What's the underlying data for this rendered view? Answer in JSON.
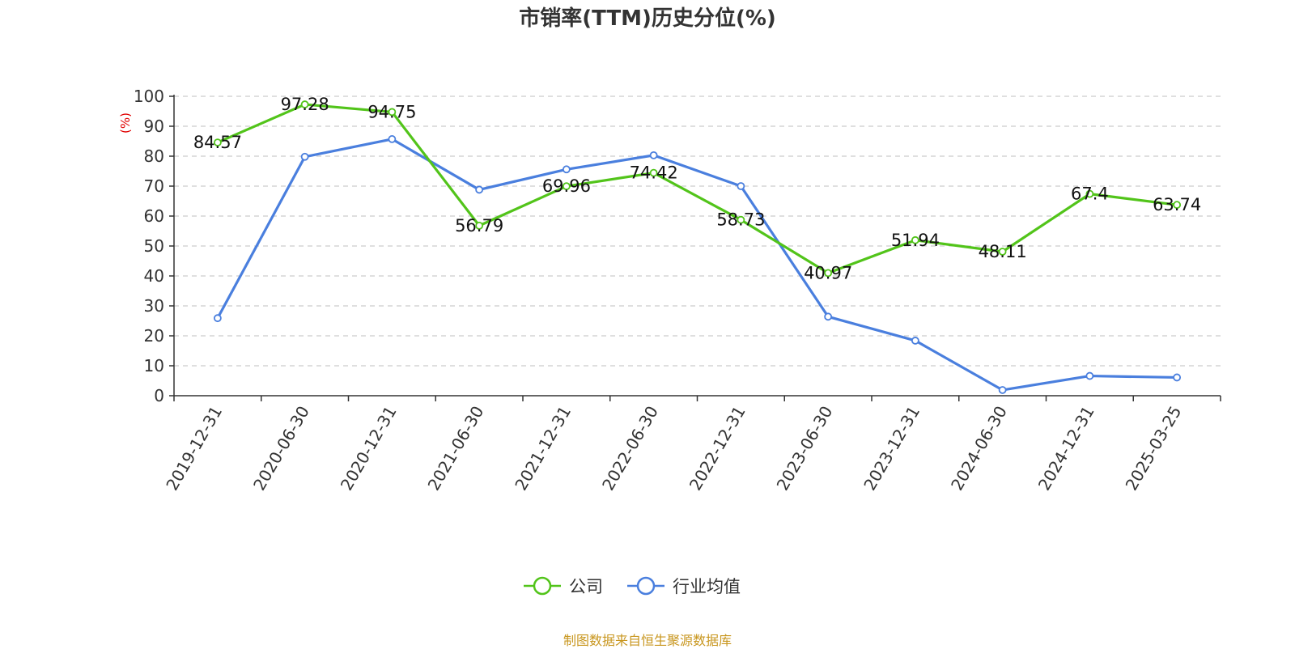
{
  "chart_data": {
    "type": "line",
    "title": "市销率(TTM)历史分位(%)",
    "ylabel": "(%)",
    "xlabel": "",
    "ylim": [
      0,
      100
    ],
    "yticks": [
      0,
      10,
      20,
      30,
      40,
      50,
      60,
      70,
      80,
      90,
      100
    ],
    "grid": true,
    "legend_position": "bottom-center",
    "categories": [
      "2019-12-31",
      "2020-06-30",
      "2020-12-31",
      "2021-06-30",
      "2021-12-31",
      "2022-06-30",
      "2022-12-31",
      "2023-06-30",
      "2023-12-31",
      "2024-06-30",
      "2024-12-31",
      "2025-03-25"
    ],
    "series": [
      {
        "name": "公司",
        "color": "#52c41a",
        "values": [
          84.57,
          97.28,
          94.75,
          56.79,
          69.96,
          74.42,
          58.73,
          40.97,
          51.94,
          48.11,
          67.4,
          63.74
        ],
        "labels": [
          "84.57",
          "97.28",
          "94.75",
          "56.79",
          "69.96",
          "74.42",
          "58.73",
          "40.97",
          "51.94",
          "48.11",
          "67.4",
          "63.74"
        ]
      },
      {
        "name": "行业均值",
        "color": "#4a7fde",
        "values": [
          25.9,
          79.8,
          85.7,
          68.8,
          75.6,
          80.3,
          70.0,
          26.4,
          18.4,
          1.9,
          6.6,
          6.1
        ]
      }
    ]
  },
  "footer": "制图数据来自恒生聚源数据库"
}
